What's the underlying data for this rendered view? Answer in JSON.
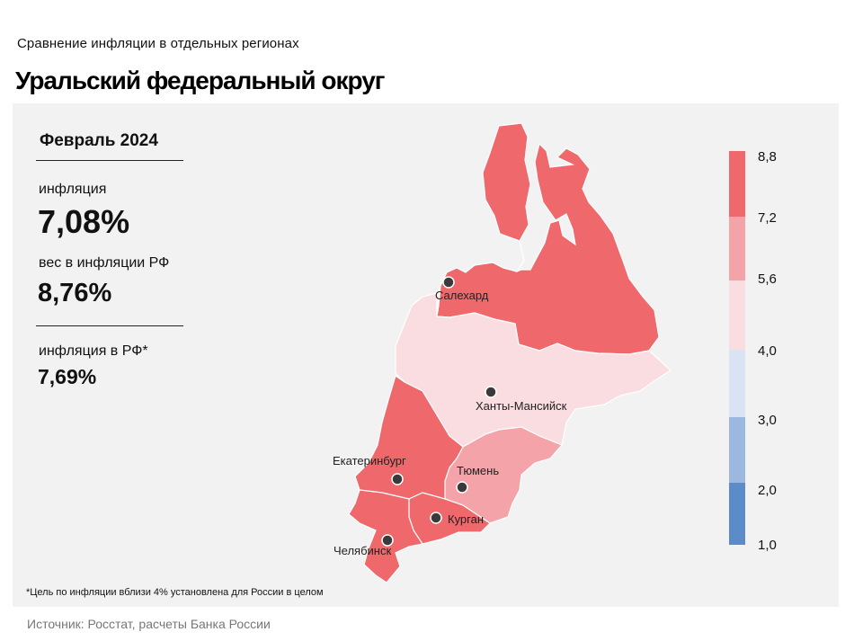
{
  "header": {
    "supertitle": "Сравнение инфляции в отдельных регионах",
    "title": "Уральский федеральный округ"
  },
  "stats": {
    "period": "Февраль 2024",
    "inflation_label": "инфляция",
    "inflation_value": "7,08%",
    "weight_label": "вес в инфляции РФ",
    "weight_value": "8,76%",
    "rf_label": "инфляция в РФ*",
    "rf_value": "7,69%"
  },
  "colors": {
    "panel": "#f2f2f2",
    "bin_1_0_2_0": "#5b8bc9",
    "bin_2_0_3_0": "#9db8df",
    "bin_3_0_4_0": "#d9e3f4",
    "bin_4_0_5_6": "#f9dde1",
    "bin_5_6_7_2": "#f4a3a8",
    "bin_7_2_8_8": "#ef686c"
  },
  "legend": {
    "ticks": [
      "1,0",
      "2,0",
      "3,0",
      "4,0",
      "5,6",
      "7,2",
      "8,8"
    ]
  },
  "map": {
    "cities": [
      {
        "name": "Салехард"
      },
      {
        "name": "Ханты-Мансийск"
      },
      {
        "name": "Екатеринбург"
      },
      {
        "name": "Тюмень"
      },
      {
        "name": "Курган"
      },
      {
        "name": "Челябинск"
      }
    ]
  },
  "footer": {
    "note": "*Цель по инфляции вблизи 4% установлена для России в целом",
    "source": "Источник: Росстат, расчеты Банка России"
  }
}
